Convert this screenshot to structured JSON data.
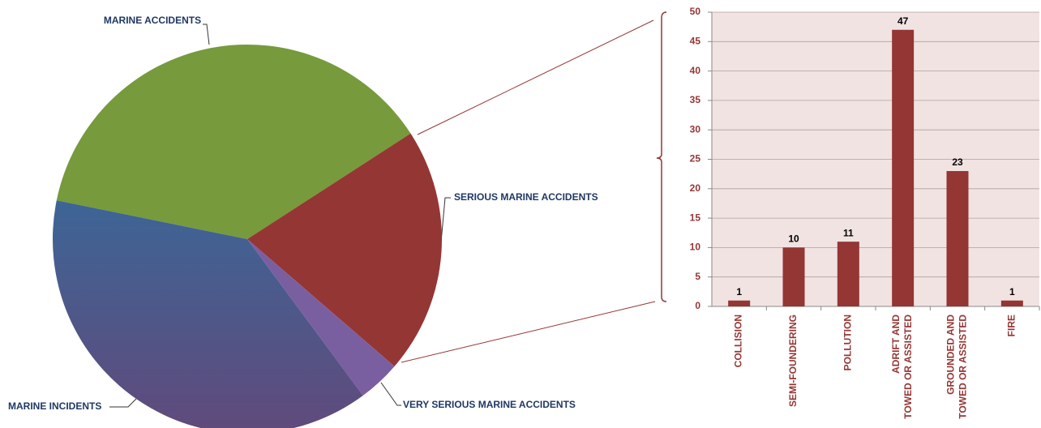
{
  "chart_data": [
    {
      "type": "pie",
      "categories": [
        "MARINE ACCIDENTS",
        "SERIOUS MARINE ACCIDENTS",
        "VERY SERIOUS MARINE ACCIDENTS",
        "MARINE INCIDENTS"
      ],
      "values": [
        171,
        93,
        16,
        174
      ],
      "colors": [
        "#779a3c",
        "#943634",
        "#7a5fa0",
        "#4d5a8e"
      ]
    },
    {
      "type": "bar",
      "categories": [
        "COLLISION",
        "SEMI-FOUNDERING",
        "POLLUTION",
        "ADRIFT AND\nTOWED OR ASSISTED",
        "GROUNDED AND\nTOWED OR ASSISTED",
        "FIRE"
      ],
      "values": [
        1,
        10,
        11,
        47,
        23,
        1
      ],
      "color": "#943634",
      "ylim": [
        0,
        50
      ],
      "yticks": [
        0,
        5,
        10,
        15,
        20,
        25,
        30,
        35,
        40,
        45,
        50
      ],
      "grid": true
    }
  ]
}
